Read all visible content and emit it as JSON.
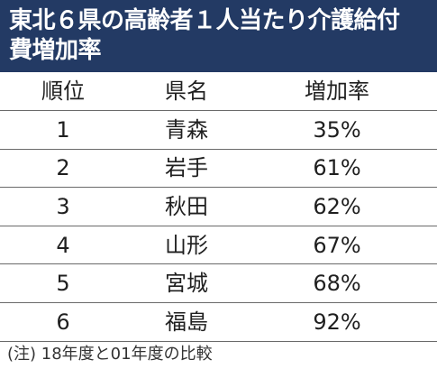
{
  "title": {
    "line1": "東北６県の高齢者１人当たり介護給付",
    "line2": "費増加率"
  },
  "table": {
    "headers": [
      "順位",
      "県名",
      "増加率"
    ],
    "rows": [
      {
        "rank": "1",
        "prefecture": "青森",
        "rate": "35%"
      },
      {
        "rank": "2",
        "prefecture": "岩手",
        "rate": "61%"
      },
      {
        "rank": "3",
        "prefecture": "秋田",
        "rate": "62%"
      },
      {
        "rank": "4",
        "prefecture": "山形",
        "rate": "67%"
      },
      {
        "rank": "5",
        "prefecture": "宮城",
        "rate": "68%"
      },
      {
        "rank": "6",
        "prefecture": "福島",
        "rate": "92%"
      }
    ]
  },
  "note": "(注) 18年度と01年度の比較",
  "colors": {
    "title_background": "#233a64",
    "title_text": "#ffffff",
    "rule_lines": "#6a6a6a"
  }
}
